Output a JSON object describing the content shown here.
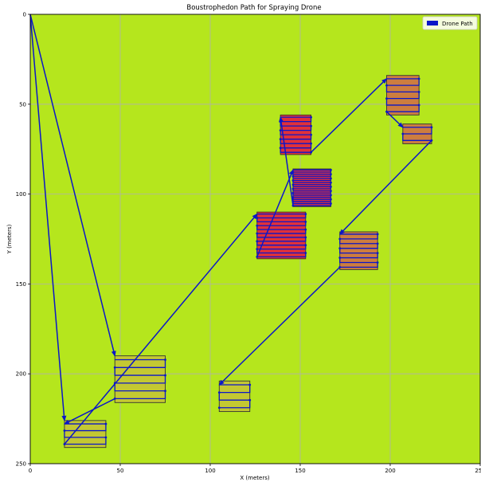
{
  "chart_data": {
    "type": "line",
    "title": "Boustrophedon Path for Spraying Drone",
    "xlabel": "X (meters)",
    "ylabel": "Y (meters)",
    "xlim": [
      0,
      250
    ],
    "ylim": [
      250,
      0
    ],
    "y_inverted": true,
    "grid": true,
    "legend_position": "top-right",
    "xticks": [
      0,
      50,
      100,
      150,
      200,
      250
    ],
    "yticks": [
      0,
      50,
      100,
      150,
      200,
      250
    ],
    "colors": {
      "field": "#b5e61d",
      "grid": "#b0b0b0",
      "path": "#0b16c8",
      "zone_olive": "#c4c832",
      "zone_orange": "#cd7d3f",
      "zone_red": "#e0313a",
      "zone_outline": "#333333"
    },
    "zones": [
      {
        "id": "A",
        "x": [
          19,
          42
        ],
        "y": [
          226,
          241
        ],
        "fill": "zone_olive",
        "passes": 4
      },
      {
        "id": "B",
        "x": [
          47,
          75
        ],
        "y": [
          190,
          216
        ],
        "fill": "zone_olive",
        "passes": 6
      },
      {
        "id": "C",
        "x": [
          105,
          122
        ],
        "y": [
          204,
          221
        ],
        "fill": "zone_olive",
        "passes": 4
      },
      {
        "id": "D",
        "x": [
          126,
          153
        ],
        "y": [
          110,
          136
        ],
        "fill": "zone_red",
        "passes": 12
      },
      {
        "id": "E",
        "x": [
          146,
          167
        ],
        "y": [
          86,
          107
        ],
        "fill": "zone_red",
        "passes": 18
      },
      {
        "id": "F",
        "x": [
          139,
          156
        ],
        "y": [
          56,
          78
        ],
        "fill": "zone_red",
        "passes": 9
      },
      {
        "id": "G",
        "x": [
          172,
          193
        ],
        "y": [
          121,
          142
        ],
        "fill": "zone_orange",
        "passes": 8
      },
      {
        "id": "H",
        "x": [
          198,
          216
        ],
        "y": [
          34,
          56
        ],
        "fill": "zone_orange",
        "passes": 6
      },
      {
        "id": "I",
        "x": [
          207,
          223
        ],
        "y": [
          61,
          72
        ],
        "fill": "zone_orange",
        "passes": 3
      }
    ],
    "series": [
      {
        "name": "Drone Path",
        "color": "path"
      }
    ],
    "route": [
      "B",
      "A",
      "D",
      "E",
      "F",
      "H",
      "I",
      "G",
      "C"
    ],
    "transits": [
      {
        "from": [
          0,
          0
        ],
        "to": [
          47,
          190
        ]
      },
      {
        "from": [
          0,
          0
        ],
        "to": [
          19,
          226
        ]
      }
    ]
  }
}
